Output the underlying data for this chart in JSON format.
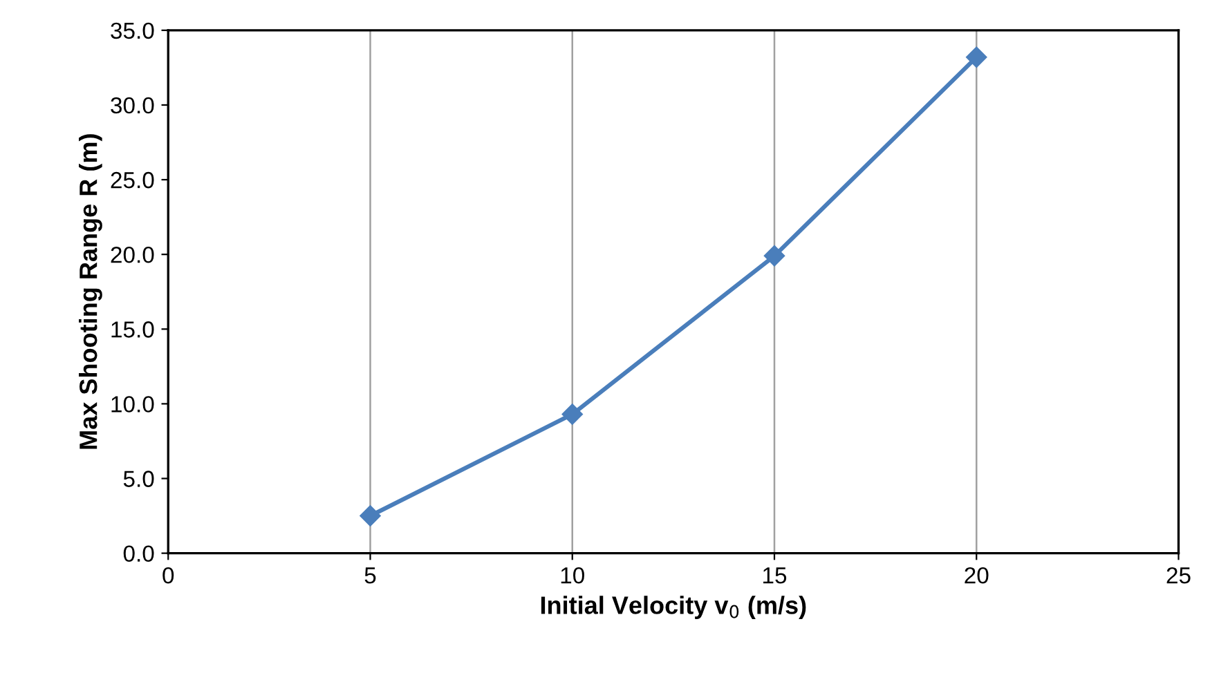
{
  "chart_data": {
    "type": "line",
    "xlabel": "Initial Velocity v$_{0}$ (m/s)",
    "ylabel": "Max Shooting Range R (m)",
    "x": [
      5,
      10,
      15,
      20
    ],
    "series": [
      {
        "color": "#4a7ebb",
        "values": [
          2.5,
          9.3,
          19.9,
          33.2
        ]
      }
    ],
    "xlim": [
      0,
      25
    ],
    "xticks": [
      0,
      5,
      10,
      15,
      20,
      25
    ],
    "ylim": [
      0,
      35
    ],
    "yticks": [
      {
        "value": 0,
        "label": "0.0"
      },
      {
        "value": 5,
        "label": "5.0"
      },
      {
        "value": 10,
        "label": "10.0"
      },
      {
        "value": 15,
        "label": "15.0"
      },
      {
        "value": 20,
        "label": "20.0"
      },
      {
        "value": 25,
        "label": "25.0"
      },
      {
        "value": 30,
        "label": "30.0"
      },
      {
        "value": 35,
        "label": "35.0"
      }
    ],
    "grid": "x",
    "marker": "diamond",
    "line_style": "solid"
  }
}
